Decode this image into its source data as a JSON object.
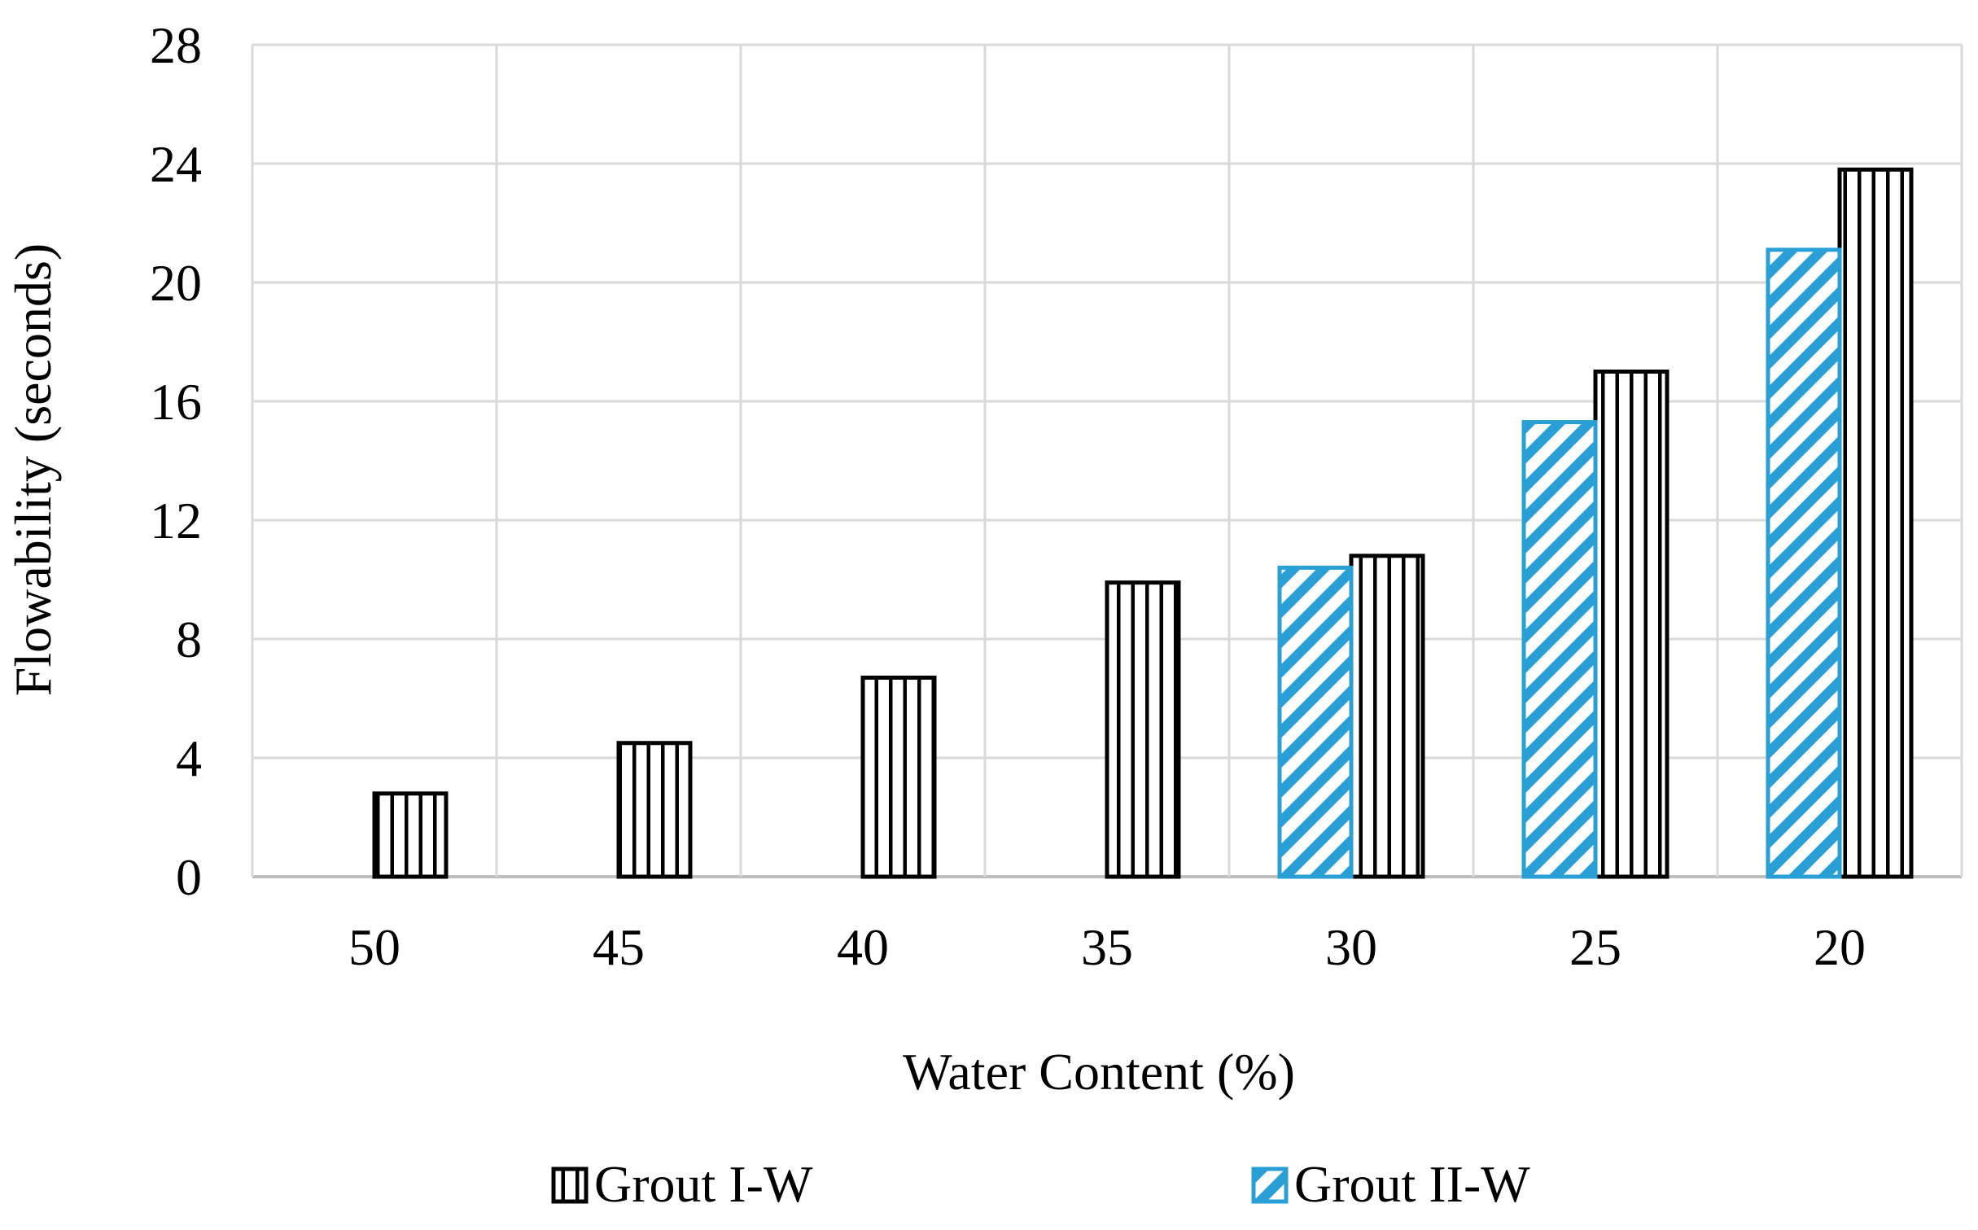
{
  "chart_data": {
    "type": "bar",
    "title": "",
    "xlabel": "Water Content (%)",
    "ylabel": "Flowability (seconds)",
    "categories": [
      "50",
      "45",
      "40",
      "35",
      "30",
      "25",
      "20"
    ],
    "ylim": [
      0,
      28
    ],
    "yticks": [
      "0",
      "4",
      "8",
      "12",
      "16",
      "20",
      "24",
      "28"
    ],
    "grid": true,
    "legend_position": "bottom",
    "series": [
      {
        "name": "Grout I-W",
        "pattern": "vertical-lines",
        "color": "#000000",
        "values": [
          2.8,
          4.5,
          6.7,
          9.9,
          10.8,
          17.0,
          23.8
        ]
      },
      {
        "name": "Grout II-W",
        "pattern": "diagonal-stripes",
        "color": "#2a9fd6",
        "values": [
          null,
          null,
          null,
          null,
          10.4,
          15.3,
          21.1
        ]
      }
    ]
  }
}
